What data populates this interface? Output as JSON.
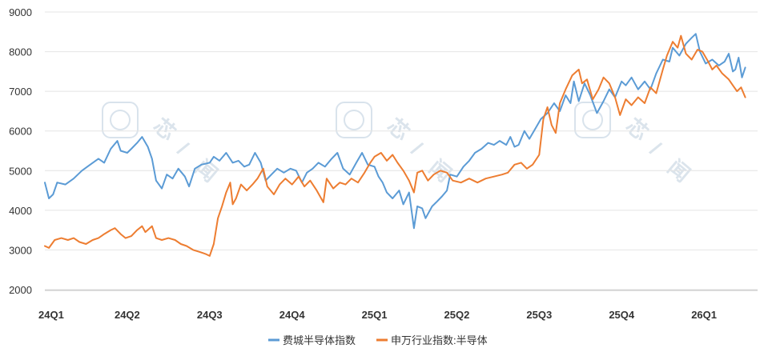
{
  "chart_data": {
    "type": "line",
    "title": "",
    "xlabel": "",
    "ylabel": "",
    "ylim": [
      2000,
      9000
    ],
    "yticks": [
      2000,
      3000,
      4000,
      5000,
      6000,
      7000,
      8000,
      9000
    ],
    "xlim": [
      0,
      8.65
    ],
    "categories": [
      "24Q1",
      "24Q2",
      "24Q3",
      "24Q4",
      "25Q1",
      "25Q2",
      "25Q3",
      "25Q4",
      "26Q1"
    ],
    "grid": "horizontal",
    "legend_position": "bottom",
    "x_unit_note": "x = quarter index (0 = 24Q1 ... 8 = 26Q1)",
    "series": [
      {
        "name": "费城半导体指数",
        "color": "#5B9BD5",
        "points": [
          [
            0.0,
            4700
          ],
          [
            0.05,
            4300
          ],
          [
            0.1,
            4400
          ],
          [
            0.15,
            4700
          ],
          [
            0.25,
            4650
          ],
          [
            0.35,
            4800
          ],
          [
            0.45,
            5000
          ],
          [
            0.55,
            5150
          ],
          [
            0.65,
            5300
          ],
          [
            0.72,
            5200
          ],
          [
            0.8,
            5550
          ],
          [
            0.88,
            5750
          ],
          [
            0.92,
            5500
          ],
          [
            1.0,
            5450
          ],
          [
            1.05,
            5550
          ],
          [
            1.12,
            5700
          ],
          [
            1.18,
            5850
          ],
          [
            1.25,
            5600
          ],
          [
            1.3,
            5300
          ],
          [
            1.35,
            4750
          ],
          [
            1.42,
            4550
          ],
          [
            1.48,
            4900
          ],
          [
            1.55,
            4800
          ],
          [
            1.62,
            5050
          ],
          [
            1.7,
            4850
          ],
          [
            1.75,
            4600
          ],
          [
            1.82,
            5050
          ],
          [
            1.9,
            5150
          ],
          [
            2.0,
            5200
          ],
          [
            2.05,
            5350
          ],
          [
            2.12,
            5250
          ],
          [
            2.2,
            5450
          ],
          [
            2.28,
            5200
          ],
          [
            2.35,
            5250
          ],
          [
            2.42,
            5100
          ],
          [
            2.48,
            5150
          ],
          [
            2.55,
            5450
          ],
          [
            2.62,
            5200
          ],
          [
            2.68,
            4750
          ],
          [
            2.75,
            4900
          ],
          [
            2.82,
            5050
          ],
          [
            2.9,
            4950
          ],
          [
            2.98,
            5050
          ],
          [
            3.05,
            5000
          ],
          [
            3.12,
            4700
          ],
          [
            3.18,
            4950
          ],
          [
            3.25,
            5050
          ],
          [
            3.32,
            5200
          ],
          [
            3.4,
            5100
          ],
          [
            3.48,
            5300
          ],
          [
            3.55,
            5450
          ],
          [
            3.62,
            5050
          ],
          [
            3.7,
            4900
          ],
          [
            3.78,
            5200
          ],
          [
            3.85,
            5450
          ],
          [
            3.92,
            5150
          ],
          [
            4.0,
            5100
          ],
          [
            4.05,
            4850
          ],
          [
            4.1,
            4700
          ],
          [
            4.15,
            4450
          ],
          [
            4.22,
            4300
          ],
          [
            4.3,
            4500
          ],
          [
            4.35,
            4150
          ],
          [
            4.42,
            4450
          ],
          [
            4.48,
            3550
          ],
          [
            4.52,
            4100
          ],
          [
            4.58,
            4050
          ],
          [
            4.62,
            3800
          ],
          [
            4.7,
            4100
          ],
          [
            4.75,
            4200
          ],
          [
            4.82,
            4350
          ],
          [
            4.88,
            4500
          ],
          [
            4.92,
            4900
          ],
          [
            5.0,
            4850
          ],
          [
            5.08,
            5100
          ],
          [
            5.15,
            5250
          ],
          [
            5.22,
            5450
          ],
          [
            5.3,
            5550
          ],
          [
            5.38,
            5700
          ],
          [
            5.45,
            5650
          ],
          [
            5.52,
            5750
          ],
          [
            5.6,
            5650
          ],
          [
            5.65,
            5850
          ],
          [
            5.7,
            5600
          ],
          [
            5.75,
            5650
          ],
          [
            5.82,
            6000
          ],
          [
            5.88,
            5800
          ],
          [
            5.95,
            6050
          ],
          [
            6.02,
            6300
          ],
          [
            6.1,
            6450
          ],
          [
            6.18,
            6700
          ],
          [
            6.25,
            6500
          ],
          [
            6.32,
            6900
          ],
          [
            6.38,
            6700
          ],
          [
            6.42,
            7250
          ],
          [
            6.48,
            6750
          ],
          [
            6.55,
            7200
          ],
          [
            6.62,
            6900
          ],
          [
            6.7,
            6450
          ],
          [
            6.78,
            6750
          ],
          [
            6.85,
            7050
          ],
          [
            6.92,
            6850
          ],
          [
            7.0,
            7250
          ],
          [
            7.05,
            7150
          ],
          [
            7.12,
            7350
          ],
          [
            7.2,
            7050
          ],
          [
            7.28,
            7250
          ],
          [
            7.35,
            7050
          ],
          [
            7.42,
            7450
          ],
          [
            7.5,
            7800
          ],
          [
            7.58,
            7750
          ],
          [
            7.62,
            8100
          ],
          [
            7.7,
            7900
          ],
          [
            7.78,
            8200
          ],
          [
            7.85,
            8350
          ],
          [
            7.9,
            8450
          ],
          [
            7.95,
            8000
          ],
          [
            8.02,
            7700
          ],
          [
            8.1,
            7800
          ],
          [
            8.18,
            7650
          ],
          [
            8.25,
            7750
          ],
          [
            8.3,
            7950
          ],
          [
            8.35,
            7500
          ],
          [
            8.38,
            7550
          ],
          [
            8.42,
            7850
          ],
          [
            8.46,
            7350
          ],
          [
            8.5,
            7600
          ]
        ]
      },
      {
        "name": "申万行业指数:半导体",
        "color": "#ED7D31",
        "points": [
          [
            0.0,
            3100
          ],
          [
            0.05,
            3050
          ],
          [
            0.12,
            3250
          ],
          [
            0.2,
            3300
          ],
          [
            0.28,
            3250
          ],
          [
            0.35,
            3300
          ],
          [
            0.42,
            3200
          ],
          [
            0.5,
            3150
          ],
          [
            0.58,
            3250
          ],
          [
            0.65,
            3300
          ],
          [
            0.72,
            3400
          ],
          [
            0.8,
            3500
          ],
          [
            0.85,
            3550
          ],
          [
            0.92,
            3400
          ],
          [
            0.98,
            3300
          ],
          [
            1.05,
            3350
          ],
          [
            1.12,
            3500
          ],
          [
            1.18,
            3600
          ],
          [
            1.22,
            3450
          ],
          [
            1.3,
            3600
          ],
          [
            1.35,
            3300
          ],
          [
            1.42,
            3250
          ],
          [
            1.5,
            3300
          ],
          [
            1.58,
            3250
          ],
          [
            1.65,
            3150
          ],
          [
            1.72,
            3100
          ],
          [
            1.8,
            3000
          ],
          [
            1.88,
            2950
          ],
          [
            1.95,
            2900
          ],
          [
            2.0,
            2850
          ],
          [
            2.05,
            3150
          ],
          [
            2.1,
            3800
          ],
          [
            2.15,
            4100
          ],
          [
            2.2,
            4450
          ],
          [
            2.25,
            4700
          ],
          [
            2.28,
            4150
          ],
          [
            2.32,
            4300
          ],
          [
            2.38,
            4650
          ],
          [
            2.45,
            4500
          ],
          [
            2.52,
            4650
          ],
          [
            2.58,
            4800
          ],
          [
            2.65,
            5050
          ],
          [
            2.7,
            4600
          ],
          [
            2.78,
            4400
          ],
          [
            2.85,
            4650
          ],
          [
            2.92,
            4800
          ],
          [
            3.0,
            4650
          ],
          [
            3.08,
            4850
          ],
          [
            3.15,
            4600
          ],
          [
            3.22,
            4750
          ],
          [
            3.3,
            4500
          ],
          [
            3.38,
            4200
          ],
          [
            3.42,
            4800
          ],
          [
            3.5,
            4550
          ],
          [
            3.58,
            4700
          ],
          [
            3.65,
            4650
          ],
          [
            3.72,
            4800
          ],
          [
            3.8,
            4700
          ],
          [
            3.88,
            4950
          ],
          [
            3.95,
            5200
          ],
          [
            4.0,
            5350
          ],
          [
            4.08,
            5450
          ],
          [
            4.15,
            5250
          ],
          [
            4.22,
            5400
          ],
          [
            4.28,
            5200
          ],
          [
            4.35,
            5000
          ],
          [
            4.42,
            4750
          ],
          [
            4.48,
            4450
          ],
          [
            4.52,
            4950
          ],
          [
            4.58,
            5000
          ],
          [
            4.65,
            4750
          ],
          [
            4.72,
            4900
          ],
          [
            4.8,
            5000
          ],
          [
            4.88,
            4950
          ],
          [
            4.95,
            4750
          ],
          [
            5.05,
            4700
          ],
          [
            5.15,
            4800
          ],
          [
            5.25,
            4700
          ],
          [
            5.35,
            4800
          ],
          [
            5.45,
            4850
          ],
          [
            5.55,
            4900
          ],
          [
            5.62,
            4950
          ],
          [
            5.7,
            5150
          ],
          [
            5.78,
            5200
          ],
          [
            5.85,
            5050
          ],
          [
            5.92,
            5150
          ],
          [
            6.0,
            5400
          ],
          [
            6.05,
            6300
          ],
          [
            6.1,
            6600
          ],
          [
            6.15,
            6150
          ],
          [
            6.2,
            5950
          ],
          [
            6.25,
            6700
          ],
          [
            6.32,
            7050
          ],
          [
            6.4,
            7400
          ],
          [
            6.48,
            7550
          ],
          [
            6.52,
            7200
          ],
          [
            6.58,
            7300
          ],
          [
            6.65,
            6800
          ],
          [
            6.72,
            7050
          ],
          [
            6.78,
            7350
          ],
          [
            6.85,
            7200
          ],
          [
            6.92,
            6850
          ],
          [
            6.98,
            6400
          ],
          [
            7.05,
            6800
          ],
          [
            7.12,
            6650
          ],
          [
            7.2,
            6850
          ],
          [
            7.28,
            6700
          ],
          [
            7.35,
            7100
          ],
          [
            7.42,
            6950
          ],
          [
            7.5,
            7550
          ],
          [
            7.55,
            7900
          ],
          [
            7.62,
            8250
          ],
          [
            7.68,
            8100
          ],
          [
            7.72,
            8400
          ],
          [
            7.78,
            7950
          ],
          [
            7.85,
            7800
          ],
          [
            7.92,
            8050
          ],
          [
            7.98,
            8000
          ],
          [
            8.05,
            7750
          ],
          [
            8.1,
            7550
          ],
          [
            8.15,
            7650
          ],
          [
            8.22,
            7450
          ],
          [
            8.3,
            7300
          ],
          [
            8.35,
            7150
          ],
          [
            8.4,
            7000
          ],
          [
            8.45,
            7100
          ],
          [
            8.5,
            6850
          ]
        ]
      }
    ]
  }
}
